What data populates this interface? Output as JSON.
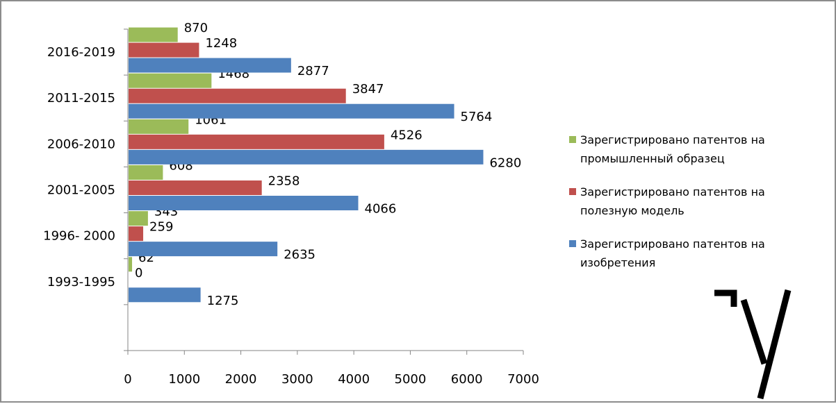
{
  "chart_data": {
    "type": "bar",
    "orientation": "horizontal",
    "categories": [
      "1993-1995",
      "1996- 2000",
      "2001-2005",
      "2006-2010",
      "2011-2015",
      "2016-2019"
    ],
    "series": [
      {
        "name": "Зарегистрировано патентов на изобретения",
        "color": "#4f81bd",
        "values": [
          1275,
          2635,
          4066,
          6280,
          5764,
          2877
        ],
        "labels": [
          "1275",
          "2635",
          "4066",
          "6280",
          "5764",
          "2877"
        ]
      },
      {
        "name": "Зарегистрировано патентов на полезную модель",
        "color": "#c0504d",
        "values": [
          0,
          259,
          2358,
          4526,
          3847,
          1248
        ],
        "labels": [
          "0",
          "259",
          "2358",
          "4526",
          "3847",
          "1248"
        ]
      },
      {
        "name": "Зарегистрировано патентов на промышленный образец",
        "color": "#9bbb59",
        "values": [
          62,
          343,
          608,
          1061,
          1468,
          870
        ],
        "labels": [
          "62",
          "343",
          "608",
          "1061",
          "1468",
          "870"
        ]
      }
    ],
    "xlim": [
      0,
      7000
    ],
    "xticks": [
      "0",
      "1000",
      "2000",
      "3000",
      "4000",
      "5000",
      "6000",
      "7000"
    ],
    "legend": {
      "position": "right",
      "entries": [
        {
          "series": 2,
          "lines": [
            "Зарегистрировано патентов на",
            "промышленный образец"
          ]
        },
        {
          "series": 1,
          "lines": [
            "Зарегистрировано патентов на",
            "полезную модель"
          ]
        },
        {
          "series": 0,
          "lines": [
            "Зарегистрировано патентов на",
            "изобретения"
          ]
        }
      ]
    },
    "grid": false,
    "title": "",
    "xlabel": "",
    "ylabel": ""
  }
}
